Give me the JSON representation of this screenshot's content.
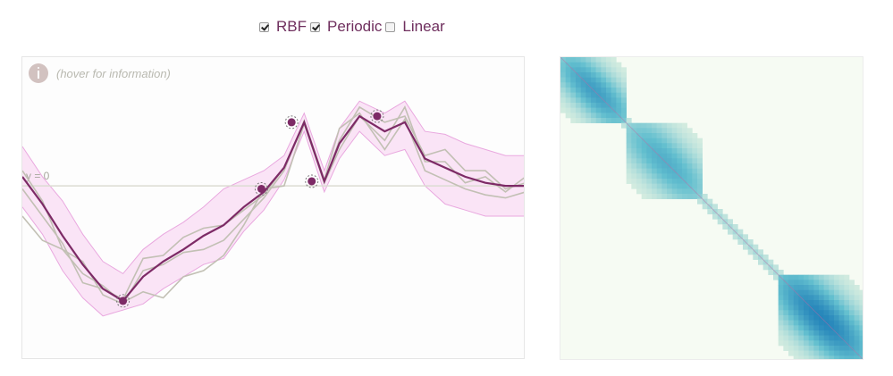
{
  "kernels": [
    {
      "label": "RBF",
      "checked": true
    },
    {
      "label": "Periodic",
      "checked": true
    },
    {
      "label": "Linear",
      "checked": false
    }
  ],
  "gp_panel": {
    "hint": "(hover for information)",
    "zero_label": "y = 0"
  },
  "colors": {
    "mean": "#7d2a66",
    "band": "#f9dff5",
    "band_edge": "#e9a8df",
    "samples": "#c2c0b4",
    "point": "#7d2a66",
    "zero_line": "#dcdcd2",
    "cov_high": "#1f7fb8",
    "cov_mid": "#63bfcf",
    "cov_low": "#dcefe1"
  },
  "chart_data": [
    {
      "type": "line",
      "title": "",
      "xlabel": "",
      "ylabel": "",
      "annotation": "y = 0",
      "xlim": [
        0,
        1
      ],
      "ylim": [
        -1.15,
        0.85
      ],
      "mean": {
        "x": [
          0,
          0.04,
          0.08,
          0.12,
          0.16,
          0.2,
          0.24,
          0.28,
          0.32,
          0.36,
          0.4,
          0.44,
          0.48,
          0.52,
          0.56,
          0.6,
          0.63,
          0.67,
          0.72,
          0.76,
          0.8,
          0.84,
          0.88,
          0.92,
          0.96,
          1.0
        ],
        "y": [
          0.06,
          -0.12,
          -0.33,
          -0.52,
          -0.68,
          -0.76,
          -0.6,
          -0.5,
          -0.42,
          -0.33,
          -0.26,
          -0.14,
          -0.04,
          0.12,
          0.42,
          0.03,
          0.28,
          0.46,
          0.36,
          0.42,
          0.18,
          0.12,
          0.06,
          0.02,
          0.0,
          0.0
        ]
      },
      "band": {
        "upper": [
          0.26,
          0.06,
          -0.1,
          -0.32,
          -0.5,
          -0.58,
          -0.42,
          -0.32,
          -0.24,
          -0.14,
          -0.02,
          0.04,
          0.1,
          0.2,
          0.48,
          0.1,
          0.38,
          0.56,
          0.48,
          0.56,
          0.36,
          0.34,
          0.28,
          0.24,
          0.2,
          0.2
        ],
        "lower": [
          -0.14,
          -0.32,
          -0.56,
          -0.74,
          -0.86,
          -0.82,
          -0.78,
          -0.68,
          -0.6,
          -0.52,
          -0.48,
          -0.3,
          -0.16,
          0.04,
          0.36,
          -0.04,
          0.18,
          0.36,
          0.2,
          0.24,
          0.0,
          -0.12,
          -0.16,
          -0.2,
          -0.2,
          -0.2
        ]
      },
      "samples": [
        {
          "y": [
            -0.2,
            -0.36,
            -0.42,
            -0.58,
            -0.66,
            -0.77,
            -0.7,
            -0.74,
            -0.6,
            -0.56,
            -0.46,
            -0.26,
            -0.02,
            0.0,
            0.41,
            0.02,
            0.3,
            0.52,
            0.42,
            0.46,
            0.2,
            0.24,
            0.1,
            0.1,
            -0.02,
            0.02
          ]
        },
        {
          "y": [
            0.1,
            -0.1,
            -0.42,
            -0.5,
            -0.72,
            -0.78,
            -0.56,
            -0.52,
            -0.44,
            -0.42,
            -0.36,
            -0.22,
            -0.08,
            0.1,
            0.43,
            0.04,
            0.38,
            0.48,
            0.24,
            0.44,
            0.1,
            0.04,
            -0.02,
            -0.06,
            -0.08,
            -0.04
          ]
        },
        {
          "y": [
            -0.02,
            -0.2,
            -0.38,
            -0.64,
            -0.68,
            -0.75,
            -0.48,
            -0.46,
            -0.34,
            -0.28,
            -0.26,
            -0.16,
            -0.06,
            0.12,
            0.42,
            0.02,
            0.24,
            0.46,
            0.3,
            0.52,
            0.16,
            0.16,
            0.02,
            0.06,
            -0.04,
            0.06
          ]
        }
      ],
      "observations": {
        "x": [
          0.2,
          0.475,
          0.535,
          0.575,
          0.705
        ],
        "y": [
          -0.76,
          -0.02,
          0.42,
          0.03,
          0.46
        ]
      }
    },
    {
      "type": "heatmap",
      "title": "",
      "description_values": "covariance matrix with three high-covariance diagonal blocks",
      "blocks": [
        {
          "range": [
            0.0,
            0.22
          ],
          "value": 0.75
        },
        {
          "range": [
            0.22,
            0.47
          ],
          "value": 0.62
        },
        {
          "range": [
            0.72,
            1.0
          ],
          "value": 0.95
        }
      ]
    }
  ]
}
